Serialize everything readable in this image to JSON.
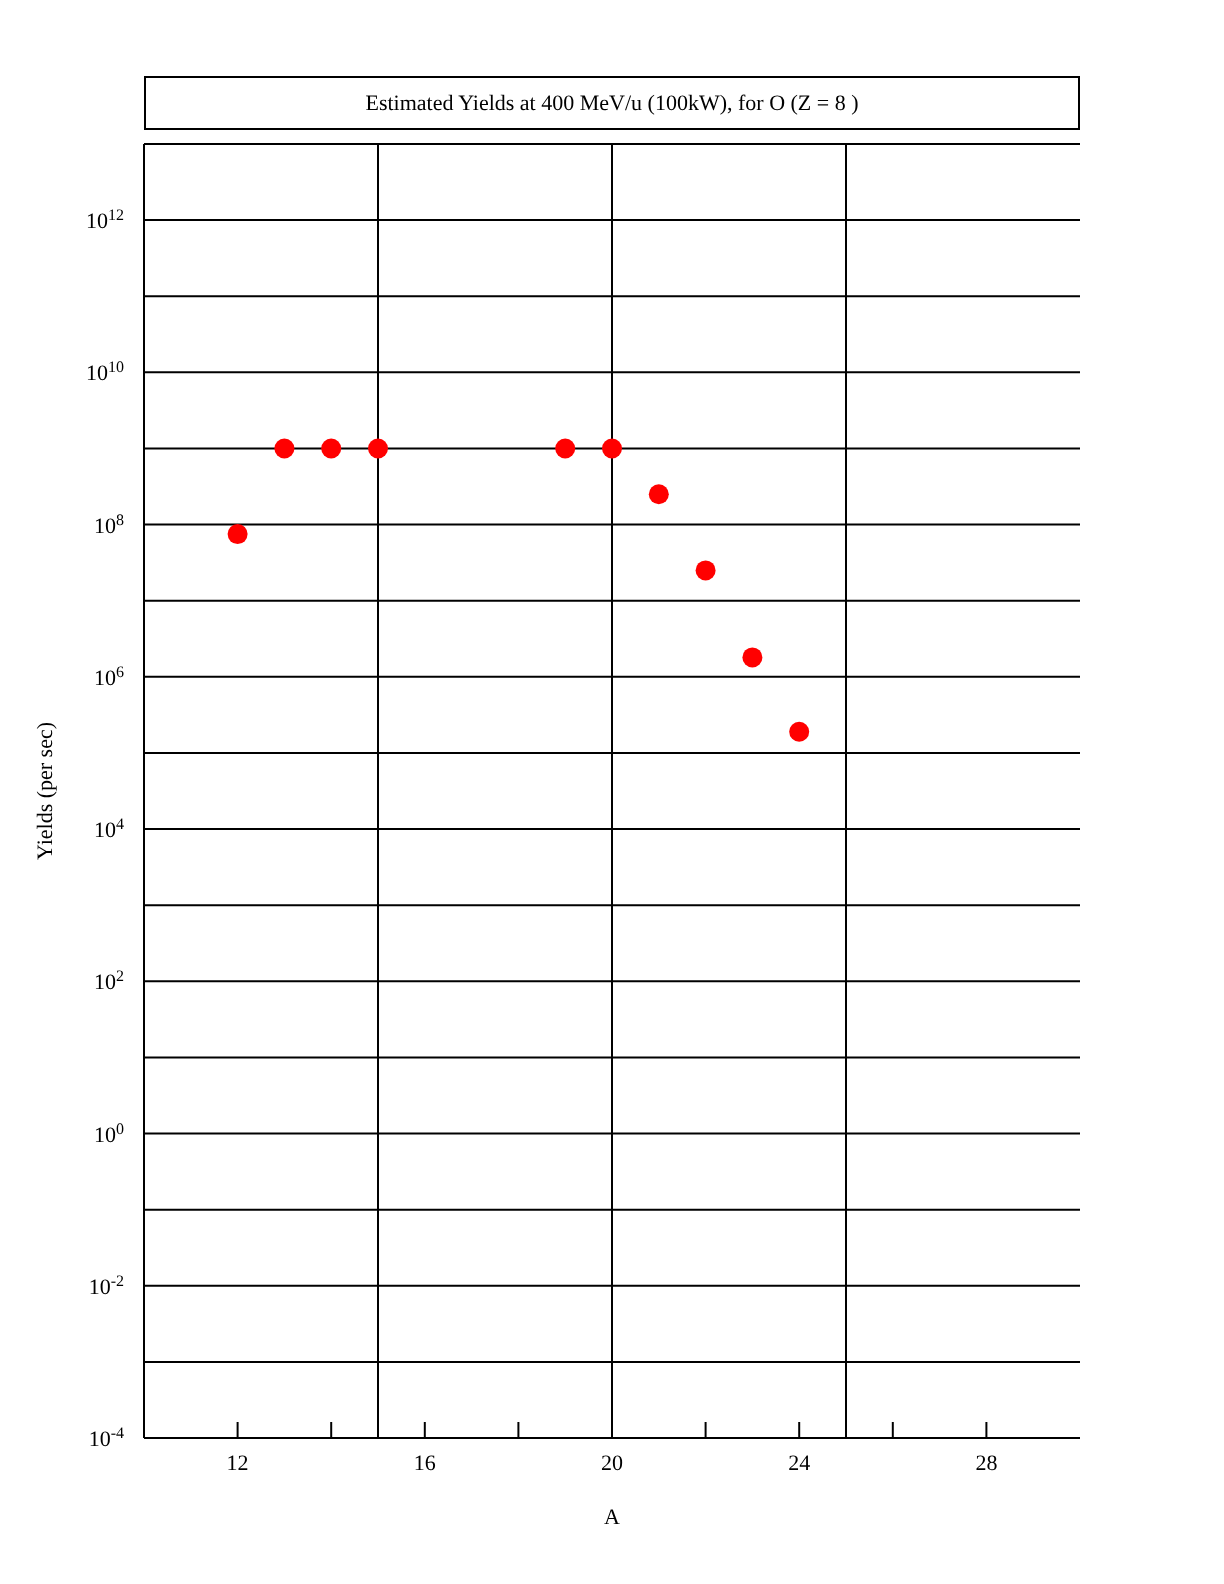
{
  "chart_data": {
    "type": "scatter",
    "title": "Estimated Yields at 400 MeV/u (100kW), for O (Z = 8 )",
    "xlabel": "A",
    "ylabel": "Yields (per sec)",
    "x": [
      12,
      13,
      14,
      15,
      19,
      20,
      21,
      22,
      23,
      24
    ],
    "series": [
      {
        "color": "#ff0000",
        "values": [
          75000000.0,
          1000000000.0,
          1000000000.0,
          1000000000.0,
          1000000000.0,
          1000000000.0,
          250000000.0,
          25000000.0,
          1800000.0,
          190000.0
        ]
      }
    ],
    "marker": "circle",
    "log": "y",
    "grid": "y",
    "legend": false,
    "xlim": [
      10,
      30
    ],
    "xticks": [
      12,
      {
        "value": 14,
        "label": null
      },
      16,
      {
        "value": 18,
        "label": null
      },
      20,
      {
        "value": 22,
        "label": null
      },
      24,
      {
        "value": 26,
        "label": null
      },
      28
    ],
    "ylim": [
      0.0001,
      10000000000000.0
    ],
    "yticks": [
      {
        "value": 0.0001,
        "label": "10$^{-4}$"
      },
      {
        "value": 0.001,
        "label": null
      },
      {
        "value": 0.01,
        "label": "10$^{-2}$"
      },
      {
        "value": 0.1,
        "label": null
      },
      {
        "value": 1,
        "label": "10$^{0}$"
      },
      {
        "value": 10,
        "label": null
      },
      {
        "value": 100,
        "label": "10$^{2}$"
      },
      {
        "value": 1000.0,
        "label": null
      },
      {
        "value": 10000.0,
        "label": "10$^{4}$"
      },
      {
        "value": 100000.0,
        "label": null
      },
      {
        "value": 1000000.0,
        "label": "10$^{6}$"
      },
      {
        "value": 10000000.0,
        "label": null
      },
      {
        "value": 100000000.0,
        "label": "10$^{8}$"
      },
      {
        "value": 1000000000.0,
        "label": null
      },
      {
        "value": 10000000000.0,
        "label": "10$^{10}$"
      },
      {
        "value": 100000000000.0,
        "label": null
      },
      {
        "value": 1000000000000.0,
        "label": "10$^{12}$"
      },
      {
        "value": 10000000000000.0,
        "label": null
      }
    ],
    "ref_lines": [
      {
        "axis": "x",
        "value": 15,
        "color": "#000000"
      },
      {
        "axis": "x",
        "value": 20,
        "color": "#000000"
      },
      {
        "axis": "x",
        "value": 25,
        "color": "#000000"
      }
    ]
  }
}
